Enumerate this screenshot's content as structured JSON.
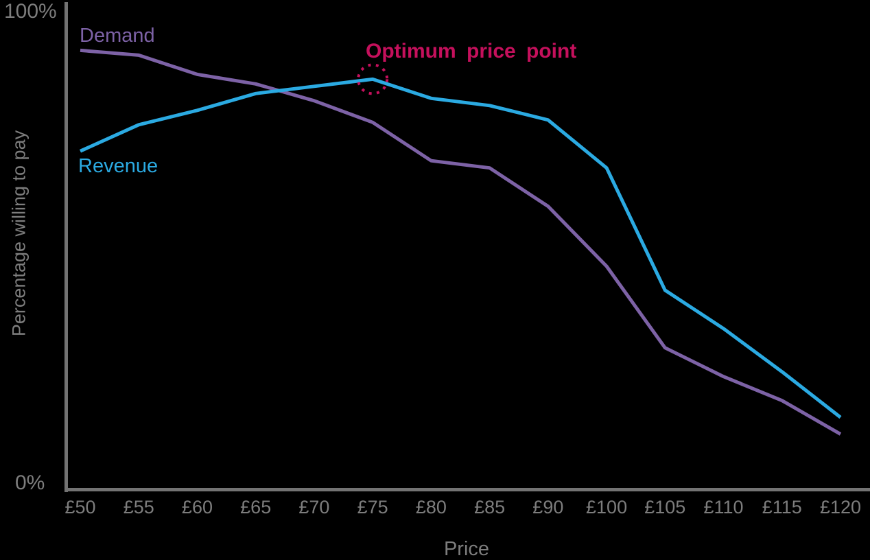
{
  "chart_data": {
    "type": "line",
    "xlabel": "Price",
    "ylabel": "Percentage willing to pay",
    "x_labels": [
      "£50",
      "£55",
      "£60",
      "£65",
      "£70",
      "£75",
      "£80",
      "£85",
      "£90",
      "£100",
      "£105",
      "£110",
      "£115",
      "£120"
    ],
    "ylim": [
      0,
      100
    ],
    "y_axis_labels": {
      "top": "100%",
      "bottom": "0%"
    },
    "grid": false,
    "legend_position": "inline-labels-at-line-start",
    "series": [
      {
        "name": "Demand",
        "color": "#7D62A6",
        "values": [
          91.5,
          90.5,
          86.5,
          84.5,
          81,
          76.5,
          68.5,
          67,
          59,
          46.5,
          29.5,
          23.5,
          18.5,
          11.5
        ]
      },
      {
        "name": "Revenue",
        "color": "#2BAAE2",
        "values": [
          70.5,
          76,
          79,
          82.5,
          84,
          85.5,
          81.5,
          80,
          77,
          67,
          41.5,
          33.5,
          24.5,
          15
        ]
      }
    ],
    "annotation": {
      "label": "Optimum price point",
      "color": "#C5105C",
      "series": "Revenue",
      "x_label": "£75",
      "value": 85.5,
      "marker": "dotted-circle"
    }
  }
}
